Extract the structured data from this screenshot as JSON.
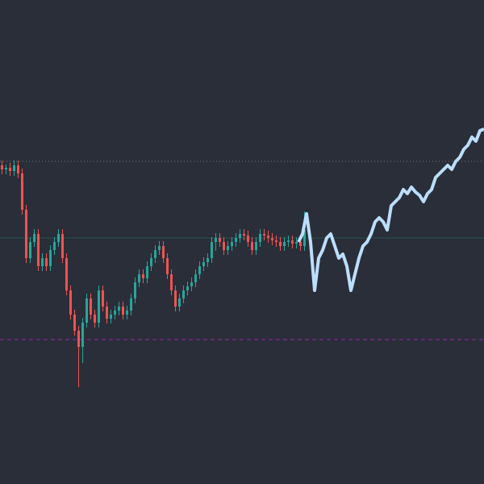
{
  "chart_data": [
    {
      "type": "candlestick",
      "ylim": [
        0,
        600
      ],
      "up_color": "#26a69a",
      "down_color": "#ef5350",
      "open": [
        395,
        390,
        392,
        388,
        395,
        385,
        340,
        280,
        300,
        310,
        270,
        280,
        270,
        290,
        300,
        310,
        280,
        240,
        210,
        190,
        170,
        200,
        230,
        210,
        200,
        240,
        220,
        205,
        210,
        215,
        220,
        210,
        215,
        230,
        250,
        260,
        255,
        270,
        280,
        290,
        295,
        280,
        260,
        240,
        220,
        230,
        240,
        245,
        250,
        260,
        270,
        275,
        280,
        300,
        305,
        300,
        290,
        295,
        300,
        305,
        310,
        308,
        300,
        290,
        300,
        310,
        308,
        305,
        302,
        300,
        295,
        300,
        302,
        298,
        300,
        295
      ],
      "high": [
        401,
        396,
        398,
        401,
        401,
        391,
        346,
        306,
        316,
        316,
        286,
        286,
        296,
        306,
        316,
        316,
        286,
        246,
        216,
        196,
        206,
        236,
        236,
        216,
        246,
        246,
        226,
        216,
        221,
        226,
        226,
        221,
        236,
        256,
        266,
        266,
        276,
        286,
        296,
        301,
        301,
        286,
        266,
        246,
        236,
        246,
        251,
        256,
        266,
        276,
        281,
        286,
        306,
        311,
        311,
        306,
        301,
        306,
        311,
        316,
        316,
        314,
        306,
        306,
        316,
        316,
        314,
        311,
        308,
        306,
        306,
        308,
        308,
        306,
        306,
        338
      ],
      "low": [
        384,
        384,
        382,
        382,
        379,
        334,
        274,
        274,
        294,
        264,
        264,
        264,
        264,
        284,
        294,
        274,
        234,
        204,
        184,
        120,
        150,
        194,
        204,
        194,
        194,
        214,
        199,
        199,
        204,
        209,
        204,
        204,
        209,
        224,
        244,
        249,
        249,
        264,
        274,
        284,
        274,
        254,
        234,
        214,
        214,
        224,
        234,
        239,
        244,
        254,
        264,
        269,
        274,
        289,
        294,
        284,
        284,
        289,
        294,
        299,
        302,
        294,
        284,
        284,
        294,
        302,
        299,
        296,
        294,
        289,
        289,
        294,
        292,
        292,
        289,
        289
      ],
      "close": [
        390,
        392,
        388,
        395,
        385,
        340,
        280,
        300,
        310,
        270,
        280,
        270,
        290,
        300,
        310,
        280,
        240,
        210,
        190,
        170,
        200,
        230,
        210,
        200,
        240,
        220,
        205,
        210,
        215,
        220,
        210,
        215,
        230,
        250,
        260,
        255,
        270,
        280,
        290,
        295,
        280,
        260,
        240,
        220,
        230,
        240,
        245,
        250,
        260,
        270,
        275,
        280,
        300,
        305,
        300,
        290,
        295,
        300,
        305,
        310,
        308,
        300,
        290,
        300,
        310,
        308,
        305,
        302,
        300,
        295,
        300,
        302,
        298,
        300,
        295,
        315
      ],
      "hlines": [
        {
          "value": 400,
          "color": "#787b86",
          "style": "dotted"
        },
        {
          "value": 305,
          "color": "#22524d",
          "style": "solid"
        },
        {
          "value": 179,
          "color": "#9c27b0",
          "style": "dashed"
        }
      ]
    },
    {
      "type": "line",
      "ylim": [
        0,
        600
      ],
      "color": "#bbdefb",
      "values": [
        300,
        310,
        335,
        300,
        240,
        280,
        290,
        305,
        310,
        295,
        280,
        285,
        270,
        240,
        260,
        280,
        295,
        300,
        310,
        325,
        330,
        325,
        315,
        345,
        350,
        355,
        365,
        360,
        368,
        362,
        358,
        350,
        360,
        365,
        380,
        385,
        390,
        395,
        390,
        400,
        405,
        415,
        420,
        430,
        425,
        438,
        440
      ]
    }
  ]
}
